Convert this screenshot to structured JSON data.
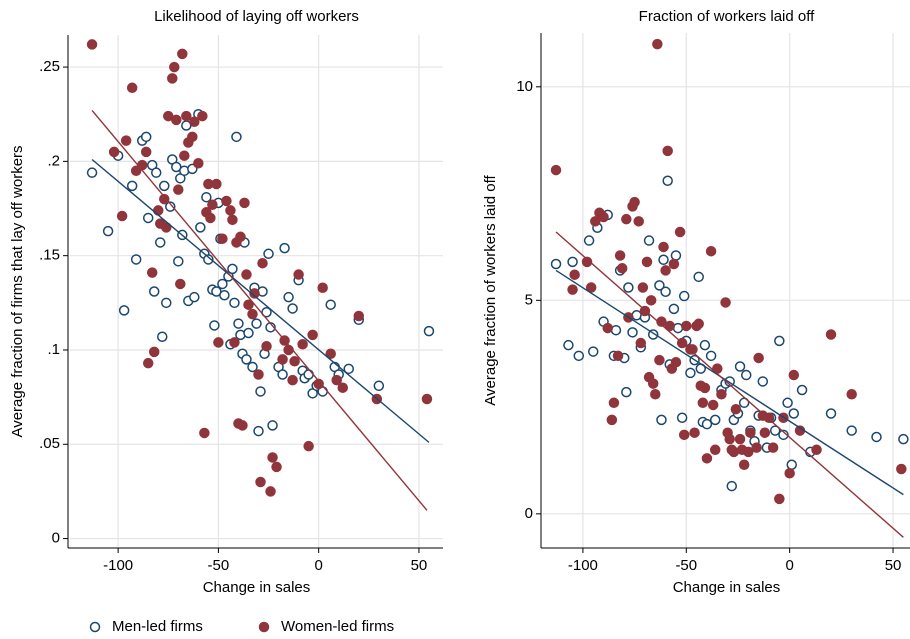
{
  "chart_data": [
    {
      "type": "scatter",
      "title": "Likelihood of laying off workers",
      "x_label": "Change in sales",
      "y_label": "Average fraction of firms that lay off workers",
      "xlim": [
        -124,
        62
      ],
      "ylim": [
        -0.005,
        0.267
      ],
      "xticks": [
        -100,
        -50,
        0,
        50
      ],
      "yticks": [
        0,
        {
          "value": 0.05,
          "label": ".05"
        },
        {
          "value": 0.1,
          "label": ".1"
        },
        {
          "value": 0.15,
          "label": ".15"
        },
        {
          "value": 0.2,
          "label": ".2"
        },
        {
          "value": 0.25,
          "label": ".25"
        }
      ],
      "grid": true,
      "series": [
        {
          "name": "Men-led firms",
          "color": "#1a476f",
          "marker": "hollow",
          "x": [
            -113,
            -105,
            -100,
            -97,
            -93,
            -91,
            -88,
            -86,
            -85,
            -83,
            -82,
            -81,
            -79,
            -78,
            -77,
            -76,
            -74,
            -73,
            -71,
            -70,
            -69,
            -68,
            -67,
            -66,
            -65,
            -63,
            -62,
            -60,
            -59,
            -57,
            -56,
            -55,
            -53,
            -52,
            -51,
            -50,
            -49,
            -48,
            -47,
            -45,
            -44,
            -43,
            -42,
            -41,
            -40,
            -39,
            -38,
            -37,
            -36,
            -35,
            -33,
            -32,
            -31,
            -30,
            -29,
            -28,
            -27,
            -26,
            -25,
            -24,
            -23,
            -20,
            -18,
            -17,
            -15,
            -13,
            -10,
            -8,
            -7,
            -5,
            -3,
            -1,
            2,
            6,
            8,
            10,
            15,
            20,
            30,
            55
          ],
          "values": [
            0.194,
            0.163,
            0.203,
            0.121,
            0.187,
            0.148,
            0.211,
            0.213,
            0.17,
            0.198,
            0.131,
            0.194,
            0.157,
            0.107,
            0.187,
            0.125,
            0.176,
            0.201,
            0.197,
            0.147,
            0.191,
            0.161,
            0.195,
            0.219,
            0.126,
            0.196,
            0.128,
            0.225,
            0.165,
            0.151,
            0.181,
            0.148,
            0.132,
            0.113,
            0.131,
            0.178,
            0.159,
            0.135,
            0.129,
            0.139,
            0.103,
            0.143,
            0.125,
            0.213,
            0.114,
            0.108,
            0.098,
            0.157,
            0.095,
            0.109,
            0.091,
            0.133,
            0.114,
            0.057,
            0.078,
            0.131,
            0.098,
            0.12,
            0.151,
            0.112,
            0.06,
            0.091,
            0.087,
            0.154,
            0.128,
            0.122,
            0.137,
            0.089,
            0.085,
            0.087,
            0.077,
            0.081,
            0.078,
            0.124,
            0.091,
            0.087,
            0.09,
            0.116,
            0.081,
            0.11
          ]
        },
        {
          "name": "Women-led firms",
          "color": "#90353b",
          "marker": "filled",
          "x": [
            -113,
            -102,
            -98,
            -96,
            -93,
            -91,
            -88,
            -86,
            -85,
            -83,
            -82,
            -80,
            -79,
            -77,
            -76,
            -75,
            -73,
            -72,
            -71,
            -70,
            -69,
            -68,
            -67,
            -66,
            -65,
            -63,
            -62,
            -60,
            -58,
            -57,
            -56,
            -55,
            -54,
            -53,
            -51,
            -50,
            -48,
            -46,
            -44,
            -43,
            -42,
            -41,
            -40,
            -39,
            -38,
            -37,
            -36,
            -35,
            -33,
            -32,
            -30,
            -29,
            -28,
            -26,
            -24,
            -23,
            -21,
            -18,
            -17,
            -15,
            -13,
            -12,
            -10,
            -8,
            -5,
            -3,
            0,
            2,
            6,
            9,
            12,
            20,
            29,
            54
          ],
          "values": [
            0.262,
            0.205,
            0.171,
            0.211,
            0.239,
            0.195,
            0.198,
            0.205,
            0.093,
            0.141,
            0.099,
            0.174,
            0.167,
            0.18,
            0.165,
            0.224,
            0.244,
            0.25,
            0.222,
            0.185,
            0.135,
            0.257,
            0.203,
            0.224,
            0.21,
            0.213,
            0.221,
            0.199,
            0.224,
            0.056,
            0.173,
            0.188,
            0.17,
            0.177,
            0.188,
            0.104,
            0.159,
            0.179,
            0.174,
            0.169,
            0.104,
            0.157,
            0.061,
            0.16,
            0.06,
            0.178,
            0.14,
            0.124,
            0.119,
            0.13,
            0.087,
            0.03,
            0.146,
            0.102,
            0.025,
            0.043,
            0.038,
            0.095,
            0.105,
            0.1,
            0.084,
            0.094,
            0.14,
            0.103,
            0.049,
            0.108,
            0.082,
            0.133,
            0.098,
            0.084,
            0.08,
            0.118,
            0.074,
            0.074
          ]
        }
      ],
      "fit_lines": [
        {
          "color": "#1a476f",
          "x": [
            -113,
            55
          ],
          "values": [
            0.201,
            0.051
          ]
        },
        {
          "color": "#90353b",
          "x": [
            -113,
            54
          ],
          "values": [
            0.227,
            0.015
          ]
        }
      ]
    },
    {
      "type": "scatter",
      "title": "Fraction of workers laid off",
      "x_label": "Change in sales",
      "y_label": "Average fraction of workers laid off",
      "xlim": [
        -119.3,
        58.2
      ],
      "ylim": [
        -0.8,
        11.26
      ],
      "xticks": [
        -100,
        -50,
        0,
        50
      ],
      "yticks": [
        0,
        5,
        10
      ],
      "grid": true,
      "series": [
        {
          "name": "Men-led firms",
          "color": "#1a476f",
          "marker": "hollow",
          "x": [
            -113,
            -107,
            -105,
            -102,
            -97,
            -95,
            -93,
            -90,
            -88,
            -85,
            -84,
            -82,
            -80,
            -79,
            -78,
            -76,
            -74,
            -72,
            -70,
            -68,
            -66,
            -63,
            -62,
            -61,
            -60,
            -59,
            -58,
            -56,
            -55,
            -54,
            -52,
            -51,
            -50,
            -48,
            -46,
            -44,
            -43,
            -42,
            -41,
            -40,
            -38,
            -36,
            -33,
            -31,
            -29,
            -28,
            -27,
            -25,
            -24,
            -22,
            -21,
            -19,
            -17,
            -15,
            -13,
            -11,
            -9,
            -7,
            -5,
            -3,
            -1,
            1,
            2,
            6,
            10,
            20,
            30,
            42,
            55
          ],
          "values": [
            5.85,
            3.95,
            5.9,
            3.7,
            6.4,
            3.8,
            6.7,
            4.5,
            7.0,
            3.7,
            4.3,
            5.7,
            3.65,
            2.85,
            5.3,
            4.25,
            4.65,
            3.9,
            4.6,
            6.4,
            4.2,
            5.35,
            2.2,
            5.95,
            5.2,
            7.8,
            3.5,
            4.8,
            6.05,
            4.35,
            2.25,
            5.1,
            4.05,
            3.3,
            3.6,
            5.55,
            3.4,
            2.15,
            3.95,
            2.1,
            3.7,
            2.2,
            2.9,
            3.05,
            3.1,
            0.65,
            2.2,
            2.35,
            3.45,
            2.6,
            3.25,
            1.95,
            1.7,
            2.3,
            3.1,
            1.55,
            2.25,
            1.95,
            4.05,
            1.85,
            2.6,
            1.15,
            2.35,
            2.9,
            1.45,
            2.35,
            1.95,
            1.8,
            1.75
          ]
        },
        {
          "name": "Women-led firms",
          "color": "#90353b",
          "marker": "filled",
          "x": [
            -113,
            -105,
            -104,
            -98,
            -96,
            -94,
            -92,
            -90,
            -88,
            -86,
            -85,
            -83,
            -82,
            -81,
            -79,
            -78,
            -76,
            -75,
            -73,
            -72,
            -71,
            -70,
            -69,
            -68,
            -67,
            -66,
            -65,
            -64,
            -63,
            -62,
            -61,
            -60,
            -59,
            -58,
            -57,
            -56,
            -55,
            -53,
            -52,
            -51,
            -50,
            -48,
            -47,
            -46,
            -45,
            -44,
            -43,
            -42,
            -41,
            -40,
            -38,
            -37,
            -36,
            -35,
            -33,
            -31,
            -30,
            -29,
            -28,
            -27,
            -26,
            -24,
            -23,
            -22,
            -20,
            -19,
            -16,
            -15,
            -13,
            -12,
            -10,
            -8,
            -5,
            -3,
            0,
            2,
            5,
            13,
            20,
            30,
            54
          ],
          "values": [
            8.05,
            5.25,
            5.6,
            5.9,
            5.3,
            6.85,
            7.05,
            6.95,
            4.35,
            2.2,
            2.6,
            3.7,
            6.05,
            5.75,
            6.9,
            4.6,
            7.2,
            7.3,
            6.85,
            4.0,
            5.3,
            4.75,
            5.9,
            3.2,
            5.0,
            3.05,
            2.8,
            11.0,
            3.6,
            4.5,
            6.25,
            5.7,
            8.5,
            4.4,
            3.4,
            5.85,
            3.55,
            6.6,
            4.0,
            1.85,
            4.4,
            3.85,
            3.85,
            1.9,
            4.4,
            4.45,
            3.0,
            2.6,
            2.95,
            1.3,
            6.15,
            2.55,
            1.5,
            3.4,
            2.8,
            4.95,
            1.9,
            1.75,
            1.5,
            1.45,
            2.45,
            1.75,
            1.5,
            1.15,
            1.45,
            1.9,
            1.55,
            3.65,
            2.3,
            1.9,
            2.25,
            1.55,
            0.35,
            2.25,
            0.95,
            3.25,
            1.95,
            1.5,
            4.2,
            2.8,
            1.05
          ]
        }
      ],
      "fit_lines": [
        {
          "color": "#1a476f",
          "x": [
            -113,
            55
          ],
          "values": [
            5.7,
            0.45
          ]
        },
        {
          "color": "#90353b",
          "x": [
            -113,
            55
          ],
          "values": [
            6.6,
            -0.55
          ]
        }
      ]
    }
  ]
}
